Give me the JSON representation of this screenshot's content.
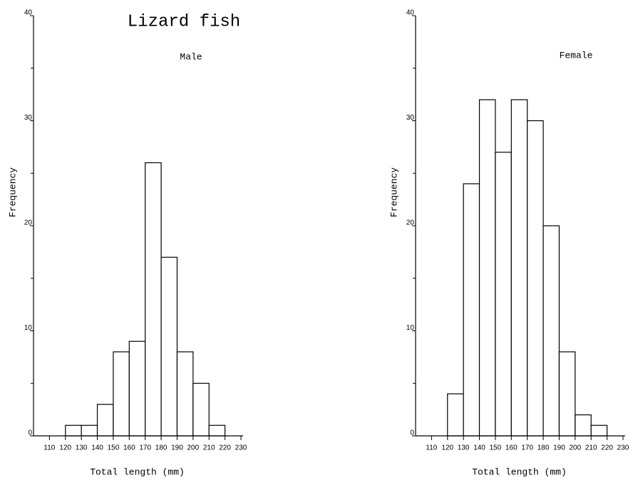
{
  "chart_data": [
    {
      "type": "histogram",
      "title": "Lizard fish",
      "subtitle": "Male",
      "xlabel": "Total length (mm)",
      "ylabel": "Frequency",
      "bins": [
        120,
        130,
        140,
        150,
        160,
        170,
        180,
        190,
        200,
        210,
        220
      ],
      "values": [
        1,
        1,
        3,
        8,
        9,
        26,
        17,
        8,
        5,
        1
      ],
      "color": "#ffffff",
      "edgecolor": "#000000",
      "xlim": [
        100,
        230
      ],
      "xticks": [
        110,
        120,
        130,
        140,
        150,
        160,
        170,
        180,
        190,
        200,
        210,
        220,
        230
      ],
      "ylim": [
        0,
        40
      ],
      "yticks": [
        0,
        10,
        20,
        30,
        40
      ],
      "minor_yticks": [
        5,
        15,
        25,
        35
      ]
    },
    {
      "type": "histogram",
      "subtitle": "Female",
      "xlabel": "Total length (mm)",
      "ylabel": "Frequency",
      "bins": [
        120,
        130,
        140,
        150,
        160,
        170,
        180,
        190,
        200,
        210,
        220
      ],
      "values": [
        4,
        24,
        32,
        27,
        32,
        30,
        20,
        8,
        2,
        1
      ],
      "color": "#ffffff",
      "edgecolor": "#000000",
      "xlim": [
        100,
        230
      ],
      "xticks": [
        110,
        120,
        130,
        140,
        150,
        160,
        170,
        180,
        190,
        200,
        210,
        220,
        230
      ],
      "ylim": [
        0,
        40
      ],
      "yticks": [
        0,
        10,
        20,
        30,
        40
      ],
      "minor_yticks": [
        5,
        15,
        25,
        35
      ]
    }
  ]
}
